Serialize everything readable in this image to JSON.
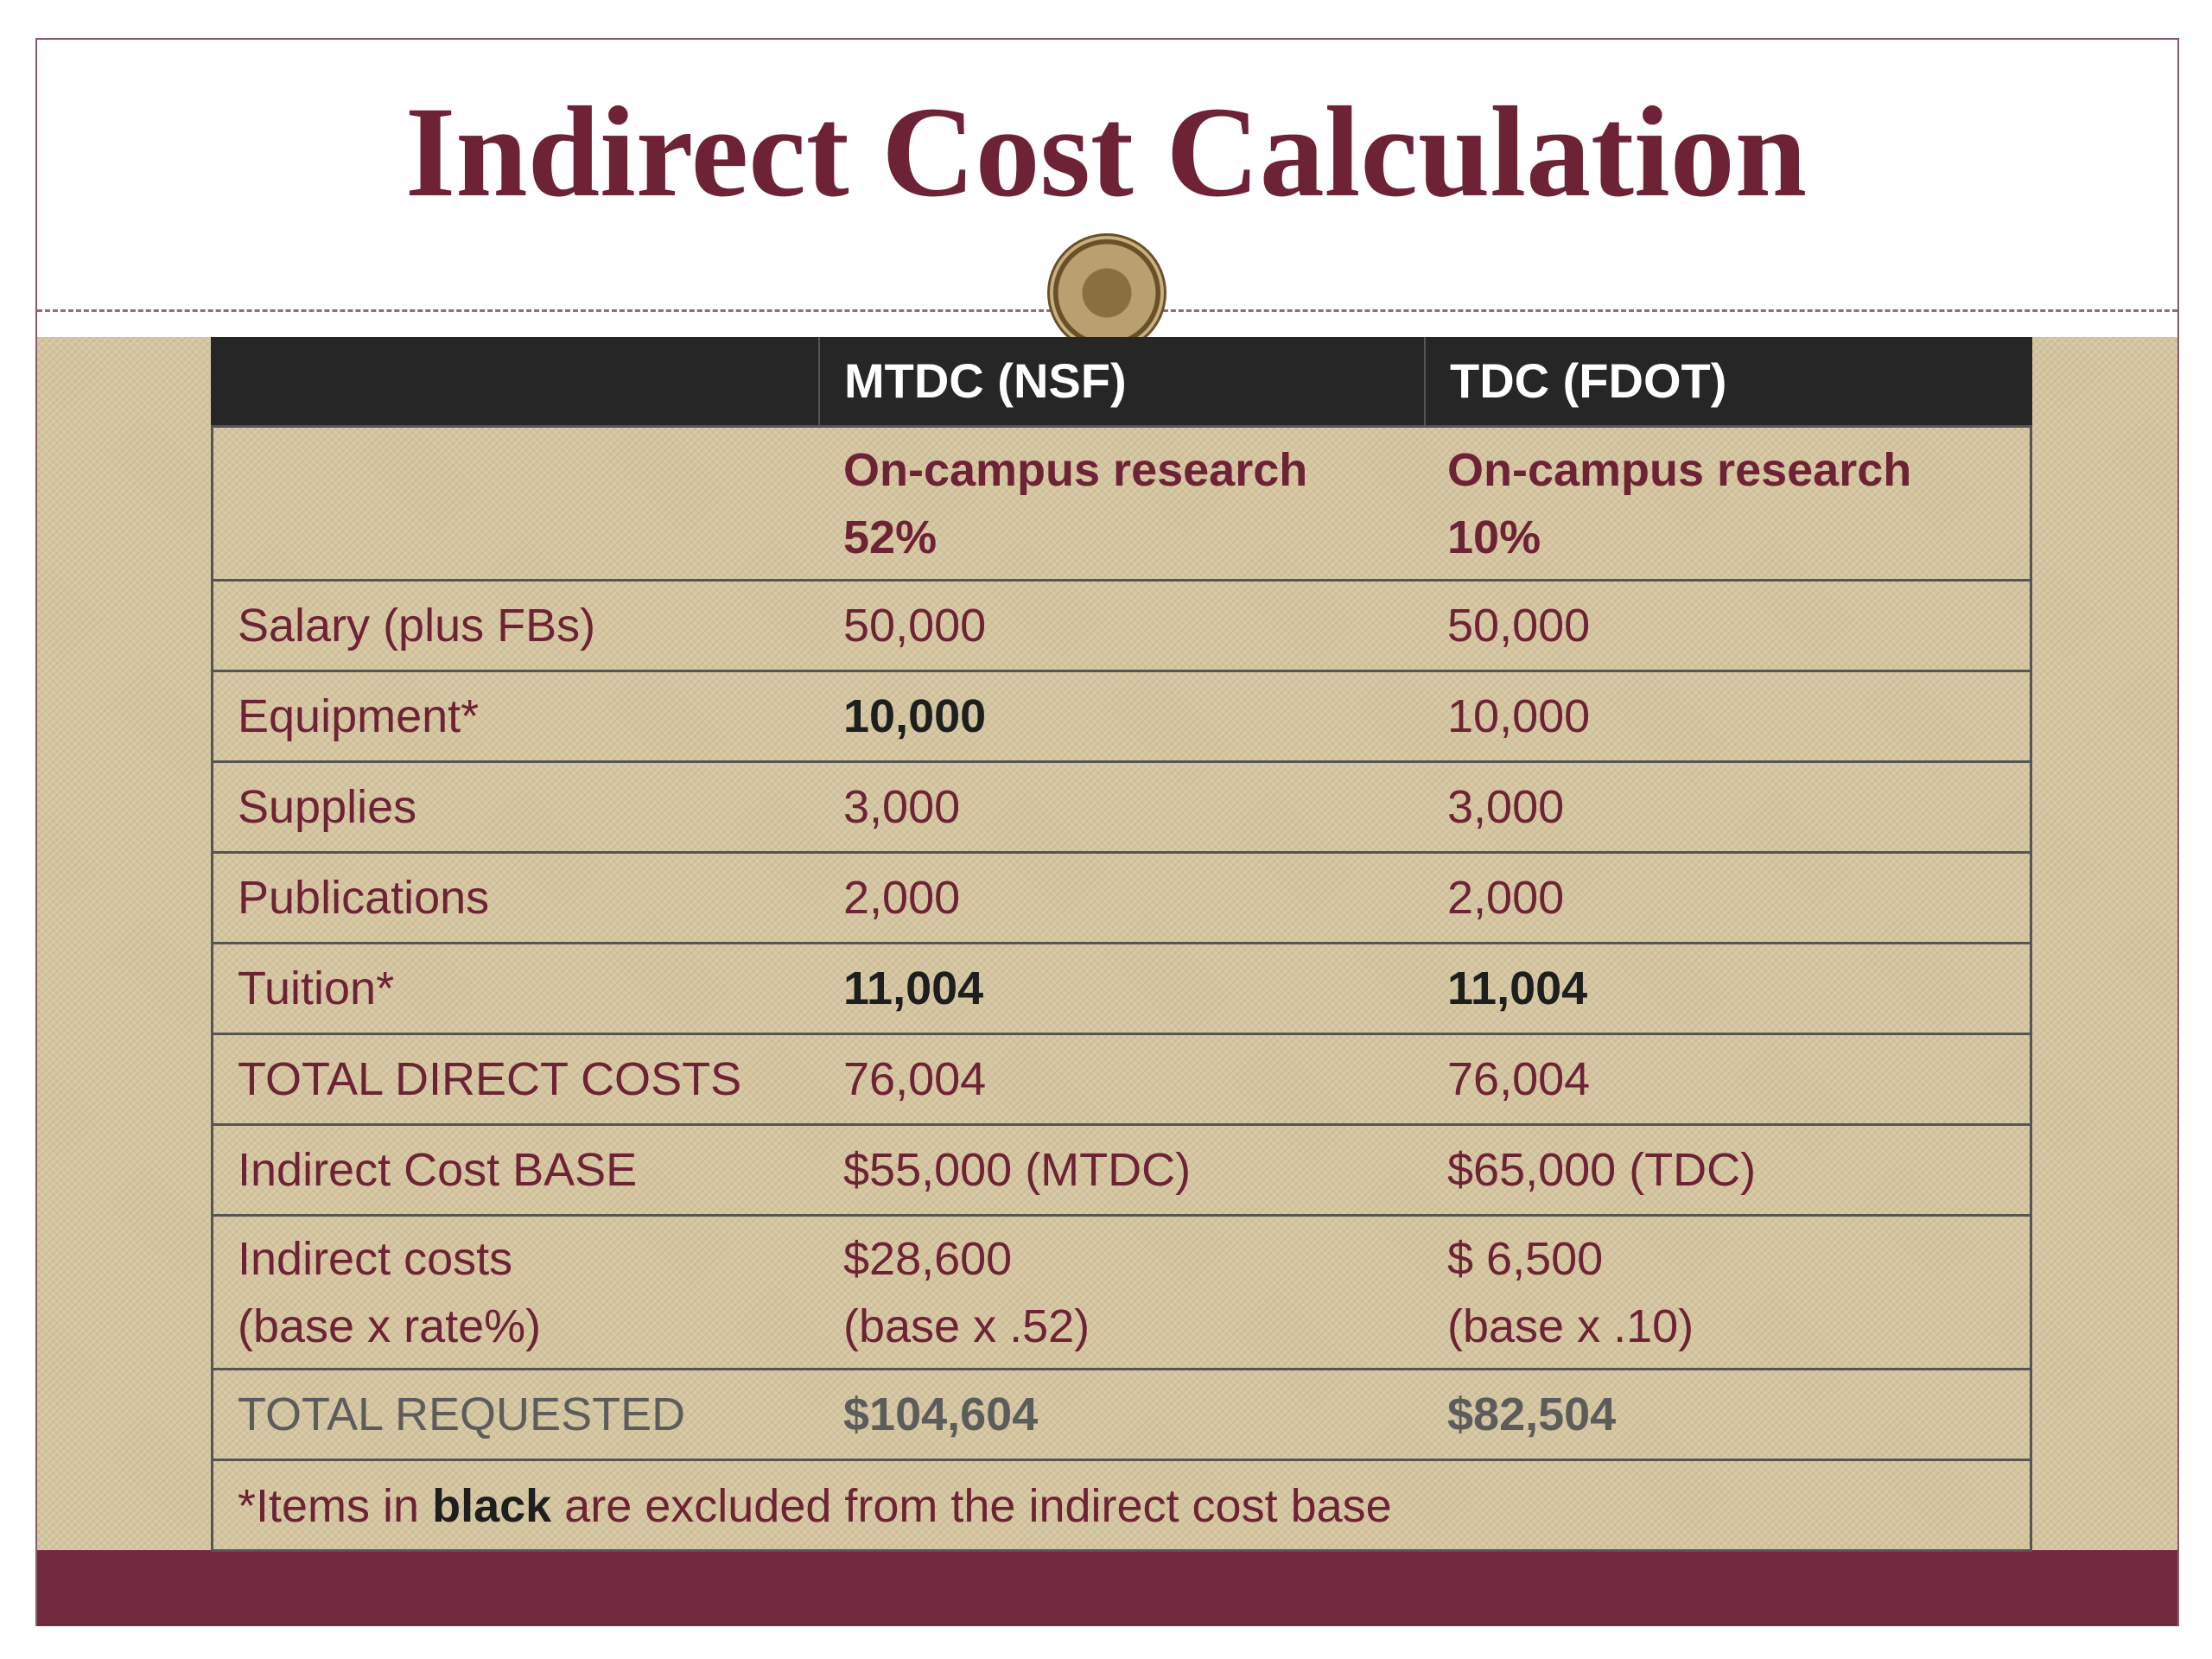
{
  "title": "Indirect Cost Calculation",
  "table": {
    "header": [
      "MTDC (NSF)",
      "TDC (FDOT)"
    ],
    "subheader": [
      [
        "On-campus research",
        "52%"
      ],
      [
        "On-campus research",
        "10%"
      ]
    ],
    "rows": [
      {
        "label": [
          "Salary (plus FBs)"
        ],
        "cells": [
          {
            "lines": [
              "50,000"
            ]
          },
          {
            "lines": [
              "50,000"
            ]
          }
        ]
      },
      {
        "label": [
          "Equipment*"
        ],
        "cells": [
          {
            "lines": [
              "10,000"
            ],
            "tone": "black"
          },
          {
            "lines": [
              "10,000"
            ]
          }
        ]
      },
      {
        "label": [
          "Supplies"
        ],
        "cells": [
          {
            "lines": [
              "3,000"
            ]
          },
          {
            "lines": [
              "3,000"
            ]
          }
        ]
      },
      {
        "label": [
          "Publications"
        ],
        "cells": [
          {
            "lines": [
              "2,000"
            ]
          },
          {
            "lines": [
              "2,000"
            ]
          }
        ]
      },
      {
        "label": [
          "Tuition*"
        ],
        "cells": [
          {
            "lines": [
              "11,004"
            ],
            "tone": "black"
          },
          {
            "lines": [
              "11,004"
            ],
            "tone": "black"
          }
        ]
      },
      {
        "label": [
          "TOTAL DIRECT COSTS"
        ],
        "cells": [
          {
            "lines": [
              "76,004"
            ]
          },
          {
            "lines": [
              "76,004"
            ]
          }
        ]
      },
      {
        "label": [
          "Indirect Cost BASE"
        ],
        "cells": [
          {
            "lines": [
              "$55,000 (MTDC)"
            ]
          },
          {
            "lines": [
              "$65,000 (TDC)"
            ]
          }
        ]
      },
      {
        "label": [
          "Indirect costs",
          "(base x rate%)"
        ],
        "cells": [
          {
            "lines": [
              "$28,600",
              "(base x .52)"
            ]
          },
          {
            "lines": [
              "$ 6,500",
              "(base x .10)"
            ]
          }
        ]
      },
      {
        "label": [
          "TOTAL REQUESTED"
        ],
        "tone": "gray",
        "cells": [
          {
            "lines": [
              "$104,604"
            ],
            "tone": "gray"
          },
          {
            "lines": [
              "$82,504"
            ],
            "tone": "gray"
          }
        ]
      }
    ],
    "footnote": [
      {
        "text": "*Items in "
      },
      {
        "text": "black",
        "tone": "black"
      },
      {
        "text": " are excluded from the indirect cost base"
      }
    ]
  }
}
